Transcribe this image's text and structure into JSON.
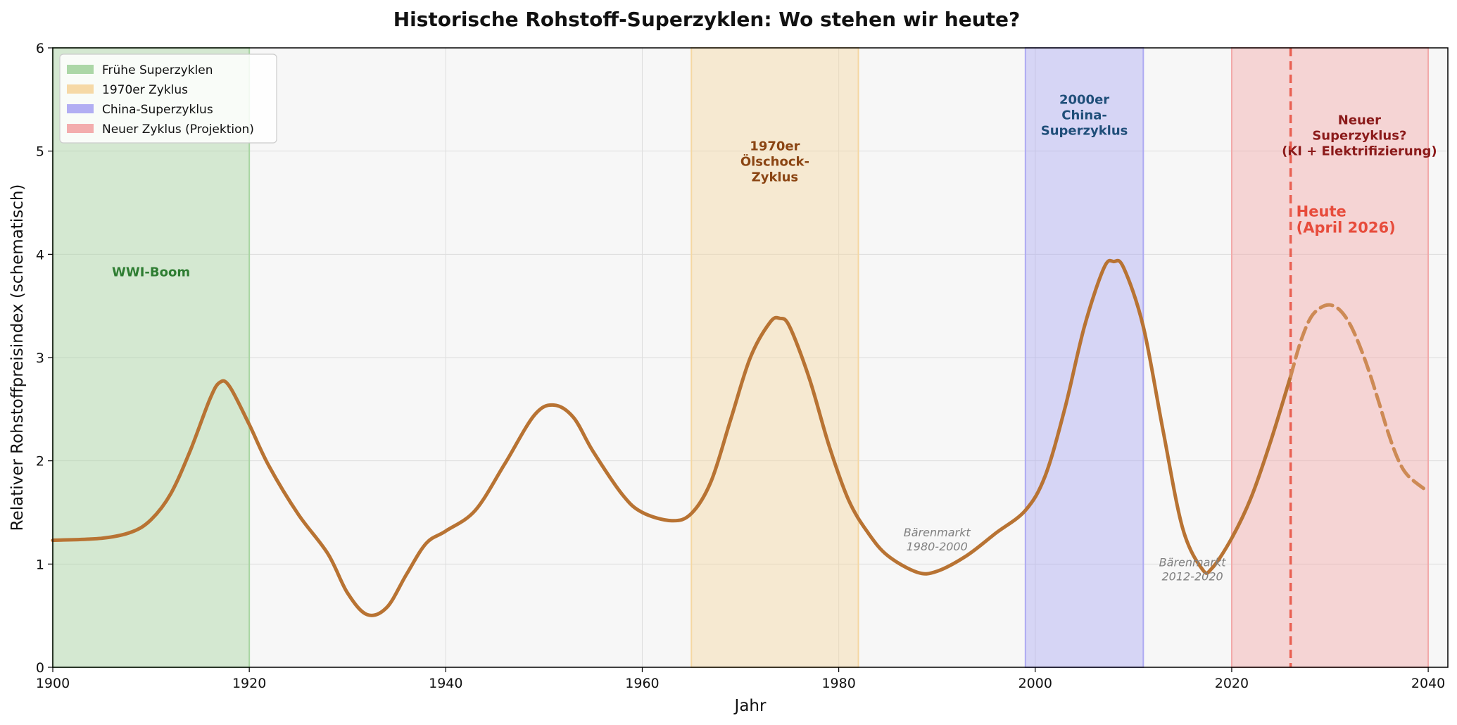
{
  "chart_data": {
    "type": "line",
    "title": "Historische Rohstoff-Superzyklen: Wo stehen wir heute?",
    "xlabel": "Jahr",
    "ylabel": "Relativer Rohstoffpreisindex (schematisch)",
    "xlim": [
      1900,
      2042
    ],
    "ylim": [
      0,
      6
    ],
    "x_ticks": [
      1900,
      1920,
      1940,
      1960,
      1980,
      2000,
      2020,
      2040
    ],
    "y_ticks": [
      0,
      1,
      2,
      3,
      4,
      5,
      6
    ],
    "grid": true,
    "legend_position": "top-left",
    "regions": [
      {
        "legend": "Frühe Superzyklen",
        "label": [
          "WWI-Boom"
        ],
        "x_start": 1900,
        "x_end": 1920,
        "fill": "#a8d5a2",
        "text_color": "#2e7d32",
        "label_x": 1910,
        "label_y": 3.83
      },
      {
        "legend": "1970er Zyklus",
        "label": [
          "1970er",
          "Ölschock-",
          "Zyklus"
        ],
        "x_start": 1965,
        "x_end": 1982,
        "fill": "#f5d7a1",
        "text_color": "#8b4513",
        "label_x": 1973.5,
        "label_y": 4.9
      },
      {
        "legend": "China-Superzyklus",
        "label": [
          "2000er",
          "China-",
          "Superzyklus"
        ],
        "x_start": 1999,
        "x_end": 2011,
        "fill": "#aeaaf2",
        "text_color": "#1f4e79",
        "label_x": 2005,
        "label_y": 5.35
      },
      {
        "legend": "Neuer Zyklus (Projektion)",
        "label": [
          "Neuer",
          "Superzyklus?",
          "(KI + Elektrifizierung)"
        ],
        "x_start": 2020,
        "x_end": 2040,
        "fill": "#f2a9a9",
        "text_color": "#8b1a1a",
        "label_x": 2033,
        "label_y": 5.15
      }
    ],
    "series": [
      {
        "style": "solid",
        "color": "#b87333",
        "x": [
          1900,
          1905,
          1908,
          1910,
          1912,
          1914,
          1916,
          1917,
          1918,
          1920,
          1922,
          1925,
          1928,
          1930,
          1932,
          1934,
          1936,
          1938,
          1940,
          1943,
          1946,
          1949,
          1951,
          1953,
          1955,
          1958,
          1960,
          1963,
          1965,
          1967,
          1969,
          1971,
          1973,
          1974,
          1975,
          1977,
          1979,
          1981,
          1983,
          1985,
          1988,
          1990,
          1993,
          1996,
          1999,
          2001,
          2003,
          2005,
          2007,
          2008,
          2009,
          2011,
          2013,
          2015,
          2017,
          2018,
          2020,
          2022,
          2024,
          2026
        ],
        "y": [
          1.23,
          1.25,
          1.31,
          1.43,
          1.68,
          2.1,
          2.6,
          2.76,
          2.72,
          2.35,
          1.95,
          1.48,
          1.1,
          0.72,
          0.51,
          0.58,
          0.9,
          1.2,
          1.32,
          1.52,
          1.97,
          2.44,
          2.54,
          2.42,
          2.09,
          1.67,
          1.5,
          1.42,
          1.49,
          1.8,
          2.4,
          3.0,
          3.34,
          3.38,
          3.3,
          2.8,
          2.15,
          1.62,
          1.3,
          1.08,
          0.92,
          0.93,
          1.08,
          1.3,
          1.52,
          1.85,
          2.5,
          3.3,
          3.87,
          3.93,
          3.87,
          3.3,
          2.3,
          1.35,
          0.95,
          0.96,
          1.25,
          1.65,
          2.2,
          2.82
        ]
      },
      {
        "style": "dashed",
        "color": "#cd8a55",
        "x": [
          2026,
          2027,
          2028,
          2029,
          2030,
          2031,
          2032,
          2033,
          2034,
          2035,
          2036,
          2037,
          2038,
          2040
        ],
        "y": [
          2.82,
          3.15,
          3.38,
          3.48,
          3.51,
          3.46,
          3.33,
          3.12,
          2.86,
          2.56,
          2.25,
          2.0,
          1.85,
          1.7
        ]
      }
    ],
    "annotations": [
      {
        "lines": [
          "Bärenmarkt",
          "1980-2000"
        ],
        "x": 1990,
        "y": 1.24
      },
      {
        "lines": [
          "Bärenmarkt",
          "2012-2020"
        ],
        "x": 2016,
        "y": 0.95
      }
    ],
    "today_marker": {
      "x": 2026,
      "lines": [
        "Heute",
        "(April 2026)"
      ],
      "color": "#e74c3c",
      "label_y": 4.3
    }
  }
}
